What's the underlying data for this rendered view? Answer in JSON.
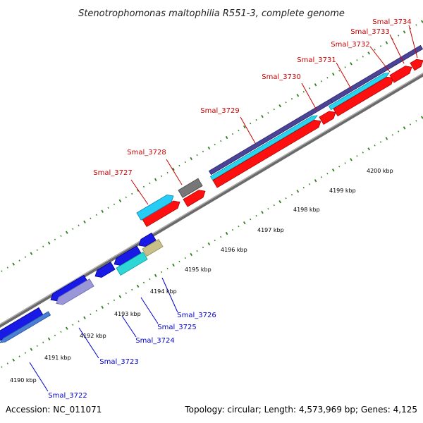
{
  "title": "Stenotrophomonas maltophilia R551-3, complete genome",
  "footer": {
    "accession": "Accession: NC_011071",
    "topology": "Topology: circular; Length: 4,573,969 bp; Genes: 4,125"
  },
  "colors": {
    "forward_label": "#cc0000",
    "reverse_label": "#0000cc",
    "backbone": "#888888",
    "tick": "#2e7d1e"
  },
  "kbp_labels": [
    "4190 kbp",
    "4191 kbp",
    "4192 kbp",
    "4193 kbp",
    "4194 kbp",
    "4195 kbp",
    "4196 kbp",
    "4197 kbp",
    "4198 kbp",
    "4199 kbp",
    "4200 kbp"
  ],
  "forward_genes": [
    "Smal_3727",
    "Smal_3728",
    "Smal_3729",
    "Smal_3730",
    "Smal_3731",
    "Smal_3732",
    "Smal_3733",
    "Smal_3734"
  ],
  "reverse_genes": [
    "Smal_3722",
    "Smal_3723",
    "Smal_3724",
    "Smal_3725",
    "Smal_3726"
  ]
}
